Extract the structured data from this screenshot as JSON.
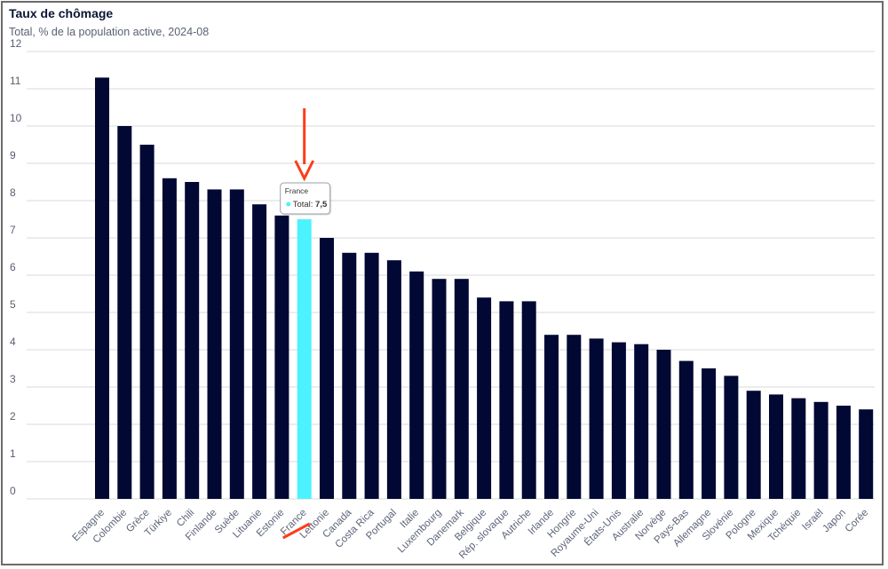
{
  "chart_data": {
    "type": "bar",
    "title": "Taux de chômage",
    "subtitle": "Total, % de la population active, 2024-08",
    "ylim": [
      0,
      12
    ],
    "yticks": [
      0,
      1,
      2,
      3,
      4,
      5,
      6,
      7,
      8,
      9,
      10,
      11,
      12
    ],
    "grid": true,
    "categories": [
      "Espagne",
      "Colombie",
      "Grèce",
      "Türkiye",
      "Chili",
      "Finlande",
      "Suède",
      "Lituanie",
      "Estonie",
      "France",
      "Lettonie",
      "Canada",
      "Costa Rica",
      "Portugal",
      "Italie",
      "Luxembourg",
      "Danemark",
      "Belgique",
      "Rép. slovaque",
      "Autriche",
      "Irlande",
      "Hongrie",
      "Royaume-Uni",
      "États-Unis",
      "Australie",
      "Norvège",
      "Pays-Bas",
      "Allemagne",
      "Slovénie",
      "Pologne",
      "Mexique",
      "Tchéquie",
      "Israël",
      "Japon",
      "Corée"
    ],
    "series": [
      {
        "values": [
          11.3,
          10.0,
          9.5,
          8.6,
          8.5,
          8.3,
          8.3,
          7.9,
          7.6,
          7.5,
          7.0,
          6.6,
          6.6,
          6.4,
          6.1,
          5.9,
          5.9,
          5.4,
          5.3,
          5.3,
          4.4,
          4.4,
          4.3,
          4.2,
          4.15,
          4.0,
          3.7,
          3.5,
          3.3,
          2.9,
          2.8,
          2.7,
          2.6,
          2.5,
          2.4
        ]
      }
    ],
    "highlight": "France",
    "tooltip": {
      "title": "France",
      "label": "Total:",
      "value": "7,5"
    },
    "colors": {
      "bar": "#000833",
      "highlight": "#4df2ff",
      "arrow": "#ff3b1a",
      "grid": "#d9d9d9"
    }
  }
}
